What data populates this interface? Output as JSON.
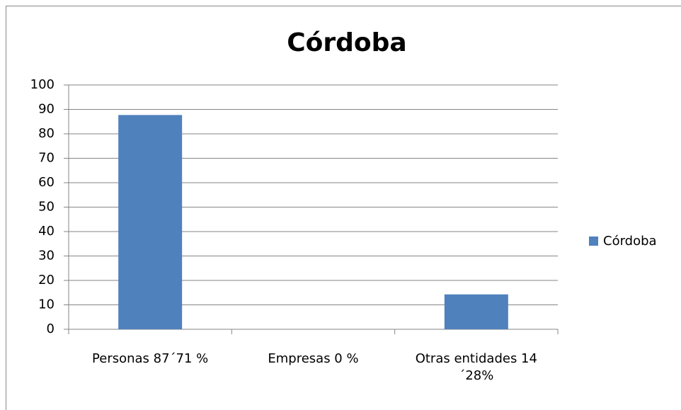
{
  "chart_data": {
    "type": "bar",
    "title": "Córdoba",
    "categories": [
      "Personas 87´71 %",
      "Empresas  0 %",
      "Otras entidades 14´28%"
    ],
    "series": [
      {
        "name": "Córdoba",
        "color": "#4f81bd",
        "values": [
          87.71,
          0,
          14.28
        ]
      }
    ],
    "ylim": [
      0,
      100
    ],
    "yticks": [
      0,
      10,
      20,
      30,
      40,
      50,
      60,
      70,
      80,
      90,
      100
    ],
    "grid": true,
    "legend": "right"
  }
}
